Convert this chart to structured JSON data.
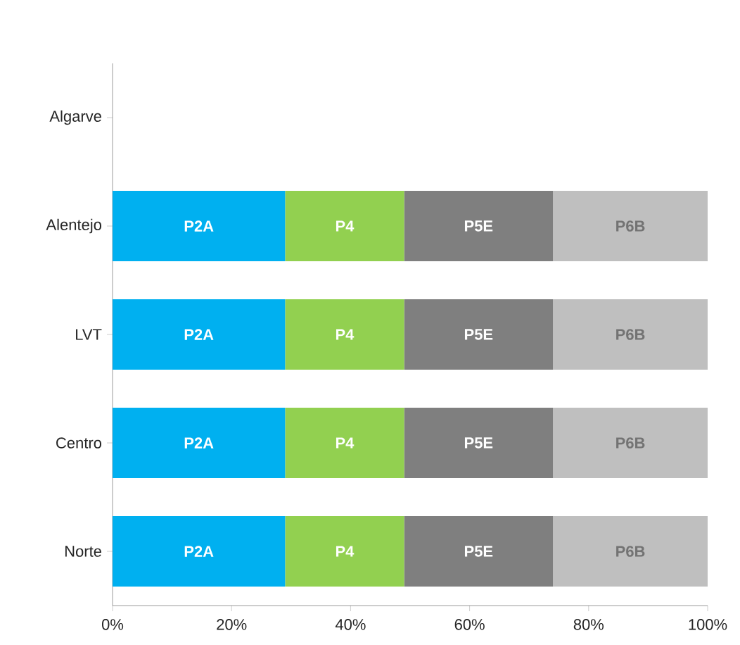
{
  "chart_data": {
    "type": "bar",
    "orientation": "horizontal",
    "stacked": true,
    "categories": [
      "Algarve",
      "Alentejo",
      "LVT",
      "Centro",
      "Norte"
    ],
    "series": [
      {
        "name": "P2A",
        "color": "#00b0f0",
        "values": [
          null,
          29,
          29,
          29,
          29
        ]
      },
      {
        "name": "P4",
        "color": "#92d050",
        "values": [
          null,
          20,
          20,
          20,
          20
        ]
      },
      {
        "name": "P5E",
        "color": "#7f7f7f",
        "values": [
          null,
          25,
          25,
          25,
          25
        ]
      },
      {
        "name": "P6B",
        "color": "#bfbfbf",
        "values": [
          null,
          26,
          26,
          26,
          26
        ]
      }
    ],
    "xlim": [
      0,
      100
    ],
    "xticks": [
      {
        "value": 0,
        "label": "0%"
      },
      {
        "value": 20,
        "label": "20%"
      },
      {
        "value": 40,
        "label": "40%"
      },
      {
        "value": 60,
        "label": "60%"
      },
      {
        "value": 80,
        "label": "80%"
      },
      {
        "value": 100,
        "label": "100%"
      }
    ],
    "grid": false,
    "legend": false
  }
}
